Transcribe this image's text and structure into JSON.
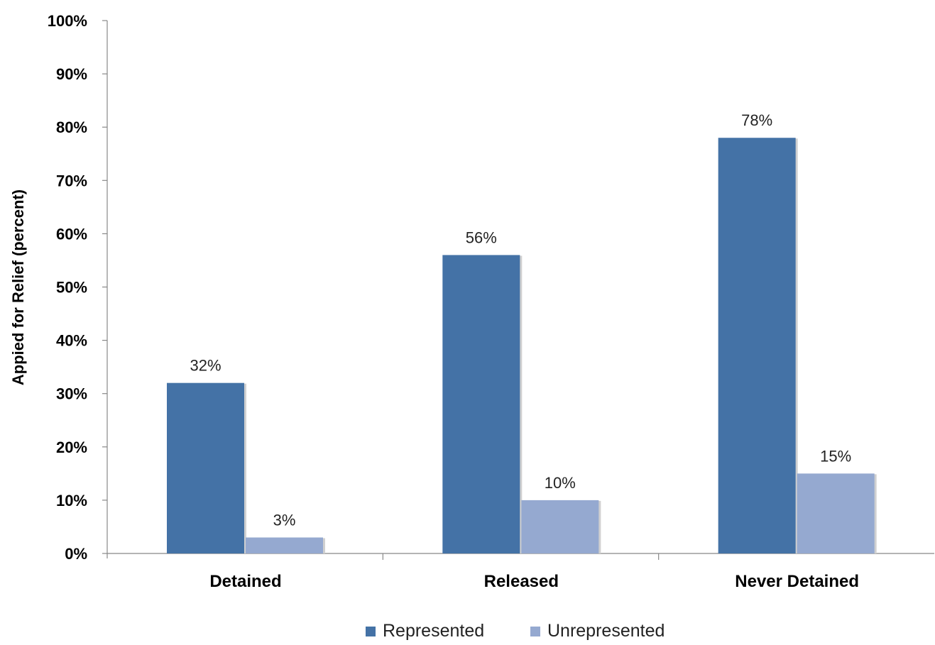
{
  "chart_data": {
    "type": "bar",
    "ylabel": "Appied for Relief (percent)",
    "ylim": [
      0,
      100
    ],
    "yticks": [
      "0%",
      "10%",
      "20%",
      "30%",
      "40%",
      "50%",
      "60%",
      "70%",
      "80%",
      "90%",
      "100%"
    ],
    "categories": [
      "Detained",
      "Released",
      "Never Detained"
    ],
    "series": [
      {
        "name": "Represented",
        "values": [
          32,
          56,
          78
        ],
        "labels": [
          "32%",
          "56%",
          "78%"
        ],
        "color": "#4472a6"
      },
      {
        "name": "Unrepresented",
        "values": [
          3,
          10,
          15
        ],
        "labels": [
          "3%",
          "10%",
          "15%"
        ],
        "color": "#95a9d0"
      }
    ],
    "legend_position": "bottom",
    "grid": false
  }
}
